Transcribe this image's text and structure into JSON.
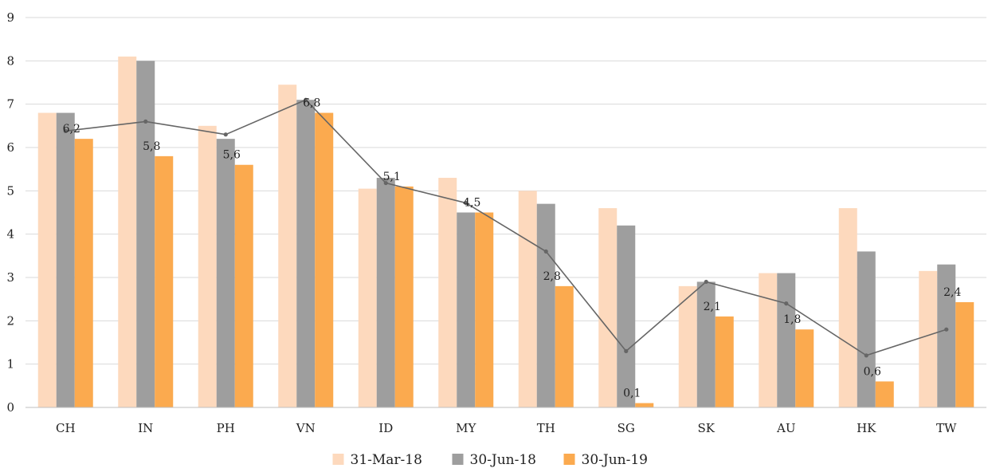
{
  "chart_data": {
    "type": "bar",
    "title": "",
    "xlabel": "",
    "ylabel": "",
    "ylim": [
      0,
      9
    ],
    "yticks": [
      0,
      1,
      2,
      3,
      4,
      5,
      6,
      7,
      8,
      9
    ],
    "grid": true,
    "legend_position": "bottom-center",
    "categories": [
      "CH",
      "IN",
      "PH",
      "VN",
      "ID",
      "MY",
      "TH",
      "SG",
      "SK",
      "AU",
      "HK",
      "TW"
    ],
    "series": [
      {
        "name": "31-Mar-18",
        "type": "bar",
        "color": "#fdd9bd",
        "values": [
          6.8,
          8.1,
          6.5,
          7.45,
          5.05,
          5.3,
          5.0,
          4.6,
          2.8,
          3.1,
          4.6,
          3.15
        ]
      },
      {
        "name": "30-Jun-18",
        "type": "bar",
        "color": "#9e9e9e",
        "values": [
          6.8,
          8.0,
          6.2,
          7.1,
          5.3,
          4.5,
          4.7,
          4.2,
          2.9,
          3.1,
          3.6,
          3.3
        ]
      },
      {
        "name": "30-Jun-19",
        "type": "bar",
        "color": "#fbaa4f",
        "values": [
          6.2,
          5.8,
          5.6,
          6.8,
          5.1,
          4.5,
          2.8,
          0.1,
          2.1,
          1.8,
          0.6,
          2.43
        ],
        "data_labels": [
          "6,2",
          "5,8",
          "5,6",
          "6,8",
          "5,1",
          "4,5",
          "2,8",
          "0,1",
          "2,1",
          "1,8",
          "0,6",
          "2,4"
        ]
      },
      {
        "name": "",
        "type": "line",
        "color": "#666666",
        "values": [
          6.38,
          6.6,
          6.3,
          7.1,
          5.18,
          4.72,
          3.6,
          1.3,
          2.9,
          2.4,
          1.2,
          1.8
        ]
      }
    ]
  }
}
